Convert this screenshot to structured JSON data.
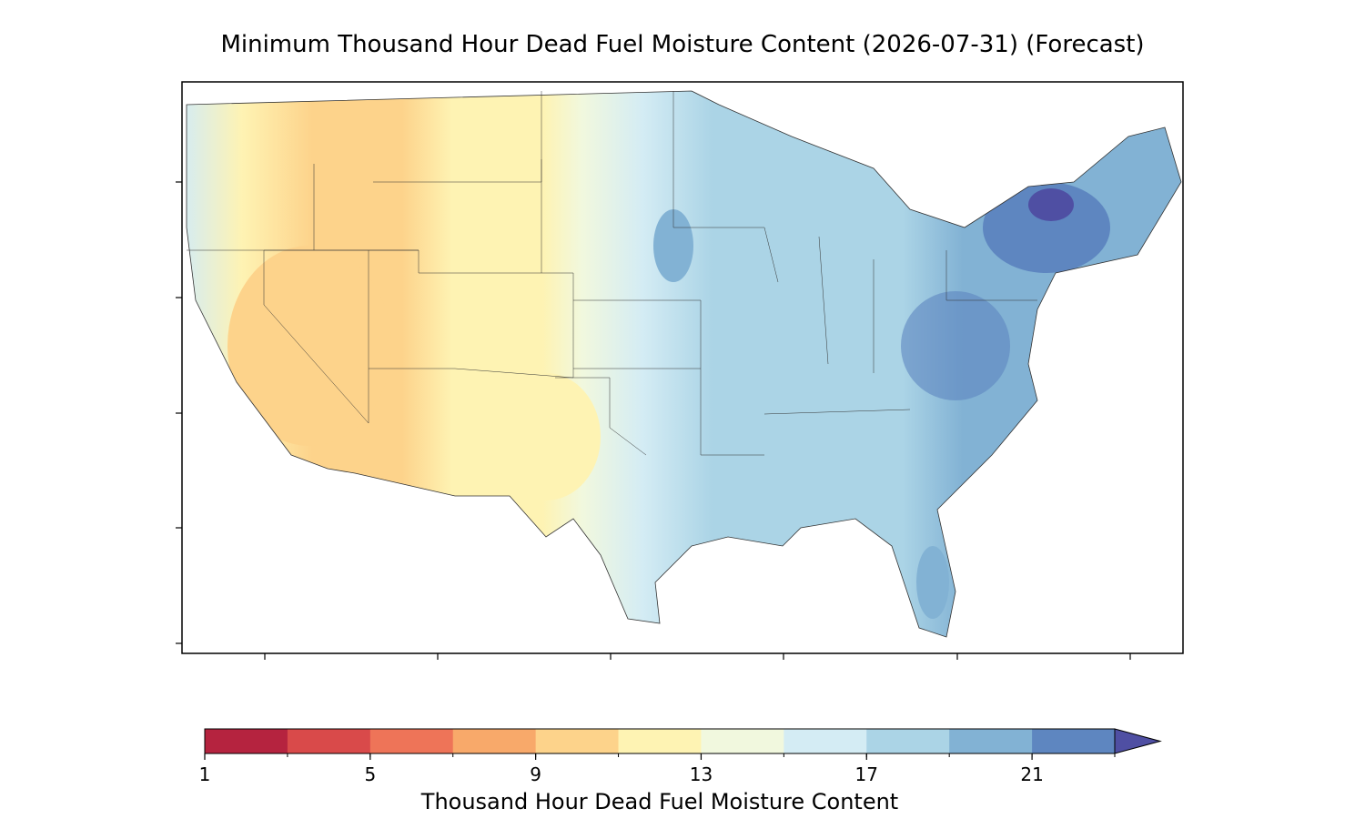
{
  "title": "Minimum Thousand Hour Dead Fuel Moisture Content (2026-07-31) (Forecast)",
  "colorbar": {
    "label": "Thousand Hour Dead Fuel Moisture Content",
    "bounds": [
      1,
      3,
      5,
      7,
      9,
      11,
      13,
      15,
      17,
      19,
      21,
      23
    ],
    "colors": [
      "#b5233f",
      "#d94a4a",
      "#ee7458",
      "#f8a96a",
      "#fdd38b",
      "#fef3b3",
      "#f1f8de",
      "#d4ecf4",
      "#abd4e6",
      "#82b2d4",
      "#5e86c0"
    ],
    "extend_color": "#4f4fa3",
    "lim": [
      1,
      23
    ],
    "ticks": [
      1,
      5,
      9,
      13,
      17,
      21
    ]
  }
}
